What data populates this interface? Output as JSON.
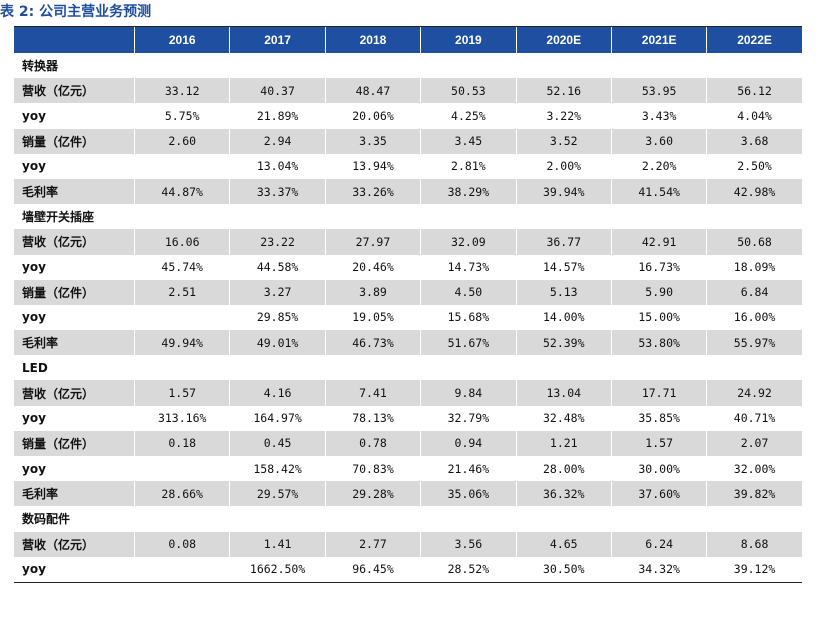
{
  "caption": "表 2: 公司主营业务预测",
  "years": [
    "2016",
    "2017",
    "2018",
    "2019",
    "2020E",
    "2021E",
    "2022E"
  ],
  "rows": [
    {
      "label": "转换器",
      "values": [
        "",
        "",
        "",
        "",
        "",
        "",
        ""
      ],
      "kind": "section"
    },
    {
      "label": "营收（亿元）",
      "values": [
        "33.12",
        "40.37",
        "48.47",
        "50.53",
        "52.16",
        "53.95",
        "56.12"
      ],
      "kind": "data"
    },
    {
      "label": "yoy",
      "values": [
        "5.75%",
        "21.89%",
        "20.06%",
        "4.25%",
        "3.22%",
        "3.43%",
        "4.04%"
      ],
      "kind": "data"
    },
    {
      "label": "销量（亿件）",
      "values": [
        "2.60",
        "2.94",
        "3.35",
        "3.45",
        "3.52",
        "3.60",
        "3.68"
      ],
      "kind": "data"
    },
    {
      "label": "yoy",
      "values": [
        "",
        "13.04%",
        "13.94%",
        "2.81%",
        "2.00%",
        "2.20%",
        "2.50%"
      ],
      "kind": "data"
    },
    {
      "label": "毛利率",
      "values": [
        "44.87%",
        "33.37%",
        "33.26%",
        "38.29%",
        "39.94%",
        "41.54%",
        "42.98%"
      ],
      "kind": "data"
    },
    {
      "label": "墙壁开关插座",
      "values": [
        "",
        "",
        "",
        "",
        "",
        "",
        ""
      ],
      "kind": "section"
    },
    {
      "label": "营收（亿元）",
      "values": [
        "16.06",
        "23.22",
        "27.97",
        "32.09",
        "36.77",
        "42.91",
        "50.68"
      ],
      "kind": "data"
    },
    {
      "label": "yoy",
      "values": [
        "45.74%",
        "44.58%",
        "20.46%",
        "14.73%",
        "14.57%",
        "16.73%",
        "18.09%"
      ],
      "kind": "data"
    },
    {
      "label": "销量（亿件）",
      "values": [
        "2.51",
        "3.27",
        "3.89",
        "4.50",
        "5.13",
        "5.90",
        "6.84"
      ],
      "kind": "data"
    },
    {
      "label": "yoy",
      "values": [
        "",
        "29.85%",
        "19.05%",
        "15.68%",
        "14.00%",
        "15.00%",
        "16.00%"
      ],
      "kind": "data"
    },
    {
      "label": "毛利率",
      "values": [
        "49.94%",
        "49.01%",
        "46.73%",
        "51.67%",
        "52.39%",
        "53.80%",
        "55.97%"
      ],
      "kind": "data"
    },
    {
      "label": "LED",
      "values": [
        "",
        "",
        "",
        "",
        "",
        "",
        ""
      ],
      "kind": "section"
    },
    {
      "label": "营收（亿元）",
      "values": [
        "1.57",
        "4.16",
        "7.41",
        "9.84",
        "13.04",
        "17.71",
        "24.92"
      ],
      "kind": "data"
    },
    {
      "label": "yoy",
      "values": [
        "313.16%",
        "164.97%",
        "78.13%",
        "32.79%",
        "32.48%",
        "35.85%",
        "40.71%"
      ],
      "kind": "data"
    },
    {
      "label": "销量（亿件）",
      "values": [
        "0.18",
        "0.45",
        "0.78",
        "0.94",
        "1.21",
        "1.57",
        "2.07"
      ],
      "kind": "data"
    },
    {
      "label": "yoy",
      "values": [
        "",
        "158.42%",
        "70.83%",
        "21.46%",
        "28.00%",
        "30.00%",
        "32.00%"
      ],
      "kind": "data"
    },
    {
      "label": "毛利率",
      "values": [
        "28.66%",
        "29.57%",
        "29.28%",
        "35.06%",
        "36.32%",
        "37.60%",
        "39.82%"
      ],
      "kind": "data"
    },
    {
      "label": "数码配件",
      "values": [
        "",
        "",
        "",
        "",
        "",
        "",
        ""
      ],
      "kind": "section"
    },
    {
      "label": "营收（亿元）",
      "values": [
        "0.08",
        "1.41",
        "2.77",
        "3.56",
        "4.65",
        "6.24",
        "8.68"
      ],
      "kind": "data"
    },
    {
      "label": "yoy",
      "values": [
        "",
        "1662.50%",
        "96.45%",
        "28.52%",
        "30.50%",
        "34.32%",
        "39.12%"
      ],
      "kind": "data"
    }
  ],
  "colors": {
    "header_bg": "#1f4fa0",
    "shade_bg": "#d9d9d9",
    "caption": "#1f4e9c"
  }
}
